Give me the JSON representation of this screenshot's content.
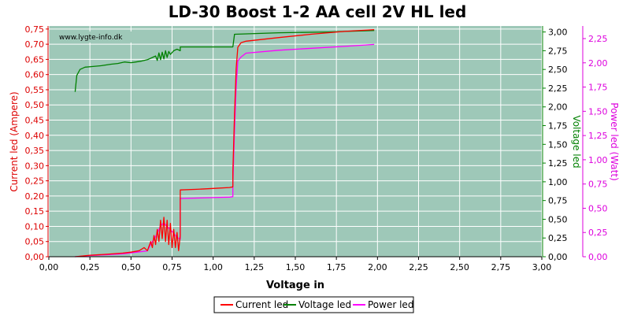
{
  "chart_data": {
    "type": "line",
    "title": "LD-30 Boost 1-2 AA cell 2V HL led",
    "xlabel": "Voltage in",
    "watermark": "www.lygte-info.dk",
    "xlim": [
      0,
      3
    ],
    "x_ticks": [
      "0,00",
      "0,25",
      "0,50",
      "0,75",
      "1,00",
      "1,25",
      "1,50",
      "1,75",
      "2,00",
      "2,25",
      "2,50",
      "2,75",
      "3,00"
    ],
    "axes": {
      "left": {
        "label": "Current led (Ampere)",
        "color": "#dd0000",
        "lim": [
          0,
          0.76
        ],
        "ticks": [
          "0,00",
          "0,05",
          "0,10",
          "0,15",
          "0,20",
          "0,25",
          "0,30",
          "0,35",
          "0,40",
          "0,45",
          "0,50",
          "0,55",
          "0,60",
          "0,65",
          "0,70",
          "0,75"
        ]
      },
      "right1": {
        "label": "Voltage led",
        "color": "#008000",
        "lim": [
          0,
          3.08
        ],
        "ticks": [
          "0,00",
          "0,25",
          "0,50",
          "0,75",
          "1,00",
          "1,25",
          "1,50",
          "1,75",
          "2,00",
          "2,25",
          "2,50",
          "2,75",
          "3,00"
        ]
      },
      "right2": {
        "label": "Power led (Watt)",
        "color": "#dd00dd",
        "lim": [
          0,
          2.38
        ],
        "ticks": [
          "0,00",
          "0,25",
          "0,50",
          "0,75",
          "1,00",
          "1,25",
          "1,50",
          "1,75",
          "2,00",
          "2,25"
        ]
      }
    },
    "colors": {
      "plot_bg": "#9ec8b8",
      "grid": "#ffffff",
      "current": "#ff0000",
      "voltage": "#008000",
      "power": "#ff00ff"
    },
    "series": [
      {
        "name": "Current led",
        "axis": "left",
        "color": "#ff0000",
        "x": [
          0.16,
          0.25,
          0.35,
          0.45,
          0.5,
          0.55,
          0.58,
          0.6,
          0.62,
          0.63,
          0.64,
          0.65,
          0.66,
          0.67,
          0.68,
          0.69,
          0.7,
          0.71,
          0.72,
          0.73,
          0.74,
          0.75,
          0.76,
          0.77,
          0.78,
          0.79,
          0.8,
          0.8,
          0.9,
          1.0,
          1.1,
          1.12,
          1.12,
          1.13,
          1.14,
          1.15,
          1.17,
          1.2,
          1.4,
          1.6,
          1.8,
          1.98
        ],
        "values": [
          0.0,
          0.005,
          0.008,
          0.012,
          0.015,
          0.02,
          0.03,
          0.02,
          0.05,
          0.03,
          0.07,
          0.04,
          0.09,
          0.05,
          0.12,
          0.06,
          0.13,
          0.05,
          0.12,
          0.04,
          0.11,
          0.03,
          0.09,
          0.03,
          0.08,
          0.02,
          0.07,
          0.22,
          0.222,
          0.225,
          0.228,
          0.23,
          0.28,
          0.47,
          0.62,
          0.69,
          0.705,
          0.71,
          0.722,
          0.733,
          0.742,
          0.748
        ]
      },
      {
        "name": "Voltage led",
        "axis": "right1",
        "color": "#008000",
        "x": [
          0.16,
          0.17,
          0.19,
          0.22,
          0.27,
          0.32,
          0.38,
          0.42,
          0.46,
          0.5,
          0.53,
          0.56,
          0.6,
          0.63,
          0.65,
          0.66,
          0.67,
          0.68,
          0.69,
          0.7,
          0.71,
          0.72,
          0.73,
          0.74,
          0.76,
          0.78,
          0.8,
          0.8,
          0.9,
          1.0,
          1.1,
          1.12,
          1.13,
          1.4,
          1.7,
          1.98
        ],
        "values": [
          2.2,
          2.42,
          2.5,
          2.53,
          2.54,
          2.55,
          2.57,
          2.58,
          2.6,
          2.59,
          2.6,
          2.61,
          2.63,
          2.66,
          2.68,
          2.62,
          2.72,
          2.63,
          2.73,
          2.64,
          2.75,
          2.66,
          2.74,
          2.7,
          2.75,
          2.77,
          2.75,
          2.8,
          2.8,
          2.8,
          2.8,
          2.8,
          2.97,
          2.99,
          3.0,
          3.02
        ]
      },
      {
        "name": "Power led",
        "axis": "right2",
        "color": "#ff00ff",
        "x": [
          0.16,
          0.25,
          0.35,
          0.45,
          0.5,
          0.55,
          0.6,
          0.62,
          0.64,
          0.66,
          0.68,
          0.7,
          0.72,
          0.74,
          0.76,
          0.78,
          0.8,
          0.8,
          0.9,
          1.0,
          1.1,
          1.12,
          1.12,
          1.13,
          1.14,
          1.15,
          1.17,
          1.2,
          1.4,
          1.6,
          1.8,
          1.98
        ],
        "values": [
          0.0,
          0.012,
          0.02,
          0.03,
          0.04,
          0.05,
          0.06,
          0.13,
          0.18,
          0.24,
          0.32,
          0.35,
          0.31,
          0.28,
          0.24,
          0.2,
          0.18,
          0.6,
          0.605,
          0.61,
          0.615,
          0.62,
          0.75,
          1.3,
          1.75,
          2.02,
          2.06,
          2.1,
          2.13,
          2.15,
          2.17,
          2.19
        ]
      }
    ],
    "legend": {
      "position": "bottom"
    }
  }
}
